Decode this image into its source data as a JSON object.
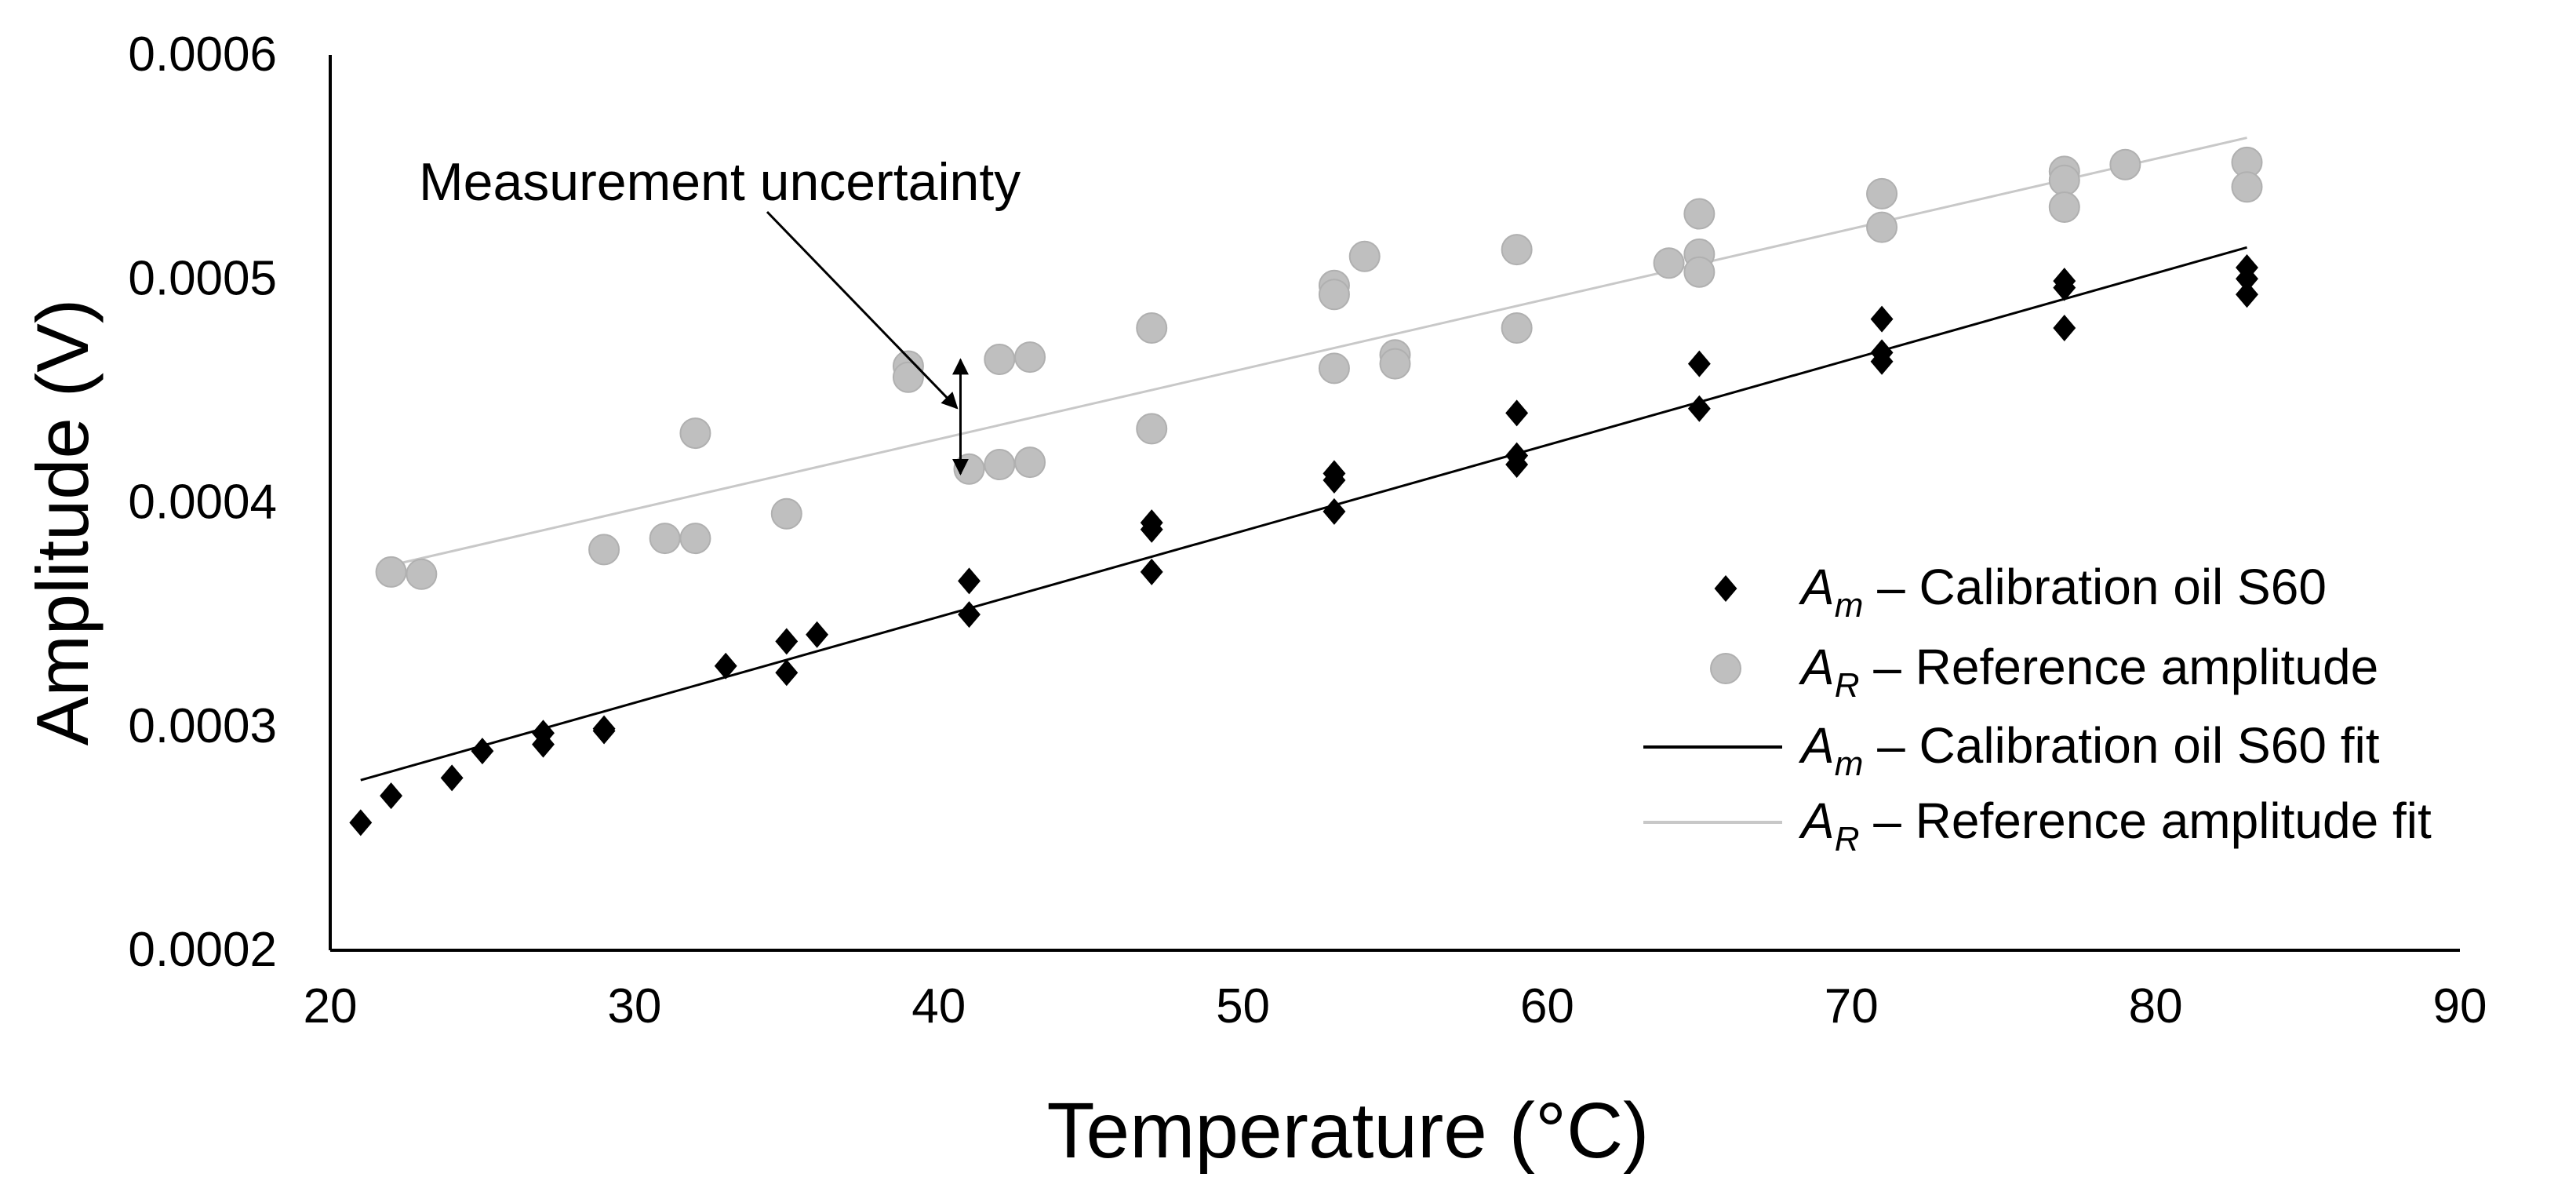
{
  "chart_data": {
    "type": "scatter",
    "title": "",
    "xlabel": "Temperature (°C)",
    "ylabel": "Amplitude (V)",
    "xlim": [
      20,
      90
    ],
    "ylim": [
      0.0002,
      0.0006
    ],
    "x_ticks": [
      20,
      30,
      40,
      50,
      60,
      70,
      80,
      90
    ],
    "y_ticks": [
      "0.0002",
      "0.0003",
      "0.0004",
      "0.0005",
      "0.0006"
    ],
    "y_tick_values": [
      0.0002,
      0.0003,
      0.0004,
      0.0005,
      0.0006
    ],
    "grid": false,
    "legend_position": "right",
    "series": [
      {
        "name": "Am – Calibration oil S60",
        "symbol": "A",
        "subscript": "m",
        "rest": " – Calibration oil S60",
        "kind": "scatter",
        "marker": "diamond",
        "color": "#000000",
        "points": [
          [
            21,
            0.000257
          ],
          [
            22,
            0.000269
          ],
          [
            24,
            0.000277
          ],
          [
            25,
            0.000289
          ],
          [
            27,
            0.000297
          ],
          [
            27,
            0.000292
          ],
          [
            29,
            0.000299
          ],
          [
            29,
            0.000298
          ],
          [
            33,
            0.000327
          ],
          [
            35,
            0.000338
          ],
          [
            35,
            0.000324
          ],
          [
            36,
            0.000341
          ],
          [
            41,
            0.000365
          ],
          [
            41,
            0.00035
          ],
          [
            47,
            0.000391
          ],
          [
            47,
            0.000388
          ],
          [
            47,
            0.000369
          ],
          [
            53,
            0.000413
          ],
          [
            53,
            0.00041
          ],
          [
            53,
            0.000396
          ],
          [
            59,
            0.00044
          ],
          [
            59,
            0.000421
          ],
          [
            59,
            0.000417
          ],
          [
            65,
            0.000462
          ],
          [
            65,
            0.000442
          ],
          [
            71,
            0.000482
          ],
          [
            71,
            0.000467
          ],
          [
            71,
            0.000463
          ],
          [
            77,
            0.000499
          ],
          [
            77,
            0.000496
          ],
          [
            77,
            0.000478
          ],
          [
            83,
            0.000505
          ],
          [
            83,
            0.0005
          ],
          [
            83,
            0.000493
          ]
        ]
      },
      {
        "name": "AR – Reference amplitude",
        "symbol": "A",
        "subscript": "R",
        "rest": " – Reference amplitude",
        "kind": "scatter",
        "marker": "circle",
        "color": "#bfbfbf",
        "points": [
          [
            22,
            0.000369
          ],
          [
            23,
            0.000368
          ],
          [
            29,
            0.000379
          ],
          [
            31,
            0.000384
          ],
          [
            32,
            0.000431
          ],
          [
            32,
            0.000384
          ],
          [
            35,
            0.000395
          ],
          [
            39,
            0.000461
          ],
          [
            39,
            0.000456
          ],
          [
            41,
            0.000415
          ],
          [
            42,
            0.000464
          ],
          [
            42,
            0.000417
          ],
          [
            43,
            0.000465
          ],
          [
            43,
            0.000418
          ],
          [
            47,
            0.000478
          ],
          [
            47,
            0.000433
          ],
          [
            53,
            0.000497
          ],
          [
            53,
            0.000493
          ],
          [
            53,
            0.00046
          ],
          [
            54,
            0.00051
          ],
          [
            55,
            0.000466
          ],
          [
            55,
            0.000462
          ],
          [
            59,
            0.000513
          ],
          [
            59,
            0.000478
          ],
          [
            64,
            0.000507
          ],
          [
            65,
            0.000529
          ],
          [
            65,
            0.000511
          ],
          [
            65,
            0.000503
          ],
          [
            71,
            0.000538
          ],
          [
            71,
            0.000523
          ],
          [
            77,
            0.000548
          ],
          [
            77,
            0.000544
          ],
          [
            77,
            0.000532
          ],
          [
            79,
            0.000551
          ],
          [
            83,
            0.000552
          ],
          [
            83,
            0.000541
          ]
        ]
      },
      {
        "name": "Am – Calibration oil S60 fit",
        "symbol": "A",
        "subscript": "m",
        "rest": " – Calibration oil S60 fit",
        "kind": "line",
        "color": "#000000",
        "x": [
          21,
          83
        ],
        "values": [
          0.000276,
          0.000514
        ]
      },
      {
        "name": "AR – Reference amplitude fit",
        "symbol": "A",
        "subscript": "R",
        "rest": " – Reference amplitude fit",
        "kind": "line",
        "color": "#c8c8c8",
        "x": [
          22,
          83
        ],
        "values": [
          0.000372,
          0.000563
        ]
      }
    ],
    "annotations": [
      {
        "text": "Measurement uncertainty",
        "arrow_from": [
          40.2,
          0.000461
        ],
        "arrow_to": [
          40.2,
          0.000415
        ]
      }
    ]
  }
}
